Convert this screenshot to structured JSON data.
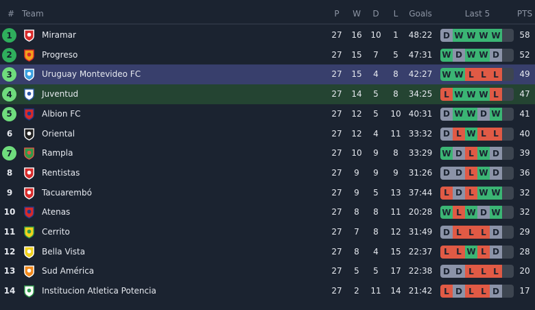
{
  "header": {
    "rank": "#",
    "team": "Team",
    "p": "P",
    "w": "W",
    "d": "D",
    "l": "L",
    "goals": "Goals",
    "last5": "Last 5",
    "pts": "PTS"
  },
  "colors": {
    "W": "#3bb574",
    "D": "#8b93a8",
    "L": "#e05a45",
    "badge_top": "#2fae5c",
    "badge_qual": "#6fdc7d",
    "highlight_selected": "#383f6c",
    "highlight_team": "#244432"
  },
  "rows": [
    {
      "rank": "1",
      "team": "Miramar",
      "p": "27",
      "w": "16",
      "d": "10",
      "l": "1",
      "goals": "48:22",
      "form": [
        "D",
        "W",
        "W",
        "W",
        "W"
      ],
      "pts": "58",
      "badge": "top",
      "crest": [
        "#d82a2a",
        "#fff"
      ]
    },
    {
      "rank": "2",
      "team": "Progreso",
      "p": "27",
      "w": "15",
      "d": "7",
      "l": "5",
      "goals": "47:31",
      "form": [
        "W",
        "D",
        "W",
        "W",
        "D"
      ],
      "pts": "52",
      "badge": "top",
      "crest": [
        "#f2a21c",
        "#d82a2a"
      ]
    },
    {
      "rank": "3",
      "team": "Uruguay Montevideo FC",
      "p": "27",
      "w": "15",
      "d": "4",
      "l": "8",
      "goals": "42:27",
      "form": [
        "W",
        "W",
        "L",
        "L",
        "L"
      ],
      "pts": "49",
      "badge": "qual",
      "crest": [
        "#3aa0e0",
        "#fff"
      ],
      "highlight": "selected"
    },
    {
      "rank": "4",
      "team": "Juventud",
      "p": "27",
      "w": "14",
      "d": "5",
      "l": "8",
      "goals": "34:25",
      "form": [
        "L",
        "W",
        "W",
        "W",
        "L"
      ],
      "pts": "47",
      "badge": "qual",
      "crest": [
        "#fff",
        "#2d5aa8"
      ],
      "highlight": "team"
    },
    {
      "rank": "5",
      "team": "Albion FC",
      "p": "27",
      "w": "12",
      "d": "5",
      "l": "10",
      "goals": "40:31",
      "form": [
        "D",
        "W",
        "W",
        "D",
        "W"
      ],
      "pts": "41",
      "badge": "qual",
      "crest": [
        "#d82a2a",
        "#1e3a8a"
      ]
    },
    {
      "rank": "6",
      "team": "Oriental",
      "p": "27",
      "w": "12",
      "d": "4",
      "l": "11",
      "goals": "33:32",
      "form": [
        "D",
        "L",
        "W",
        "L",
        "L"
      ],
      "pts": "40",
      "badge": "",
      "crest": [
        "#222",
        "#fff"
      ]
    },
    {
      "rank": "7",
      "team": "Rampla",
      "p": "27",
      "w": "10",
      "d": "9",
      "l": "8",
      "goals": "33:29",
      "form": [
        "W",
        "D",
        "L",
        "W",
        "D"
      ],
      "pts": "39",
      "badge": "qual",
      "crest": [
        "#2f9a4a",
        "#e05a45"
      ]
    },
    {
      "rank": "8",
      "team": "Rentistas",
      "p": "27",
      "w": "9",
      "d": "9",
      "l": "9",
      "goals": "31:26",
      "form": [
        "D",
        "D",
        "L",
        "W",
        "D"
      ],
      "pts": "36",
      "badge": "",
      "crest": [
        "#d82a2a",
        "#fff"
      ]
    },
    {
      "rank": "9",
      "team": "Tacuarembó",
      "p": "27",
      "w": "9",
      "d": "5",
      "l": "13",
      "goals": "37:44",
      "form": [
        "L",
        "D",
        "L",
        "W",
        "W"
      ],
      "pts": "32",
      "badge": "",
      "crest": [
        "#d82a2a",
        "#fff"
      ]
    },
    {
      "rank": "10",
      "team": "Atenas",
      "p": "27",
      "w": "8",
      "d": "8",
      "l": "11",
      "goals": "20:28",
      "form": [
        "W",
        "L",
        "W",
        "D",
        "W"
      ],
      "pts": "32",
      "badge": "",
      "crest": [
        "#d82a2a",
        "#1e3a8a"
      ]
    },
    {
      "rank": "11",
      "team": "Cerrito",
      "p": "27",
      "w": "7",
      "d": "8",
      "l": "12",
      "goals": "31:49",
      "form": [
        "D",
        "L",
        "L",
        "L",
        "D"
      ],
      "pts": "29",
      "badge": "",
      "crest": [
        "#f2d21c",
        "#2f9a4a"
      ]
    },
    {
      "rank": "12",
      "team": "Bella Vista",
      "p": "27",
      "w": "8",
      "d": "4",
      "l": "15",
      "goals": "22:37",
      "form": [
        "L",
        "L",
        "W",
        "L",
        "D"
      ],
      "pts": "28",
      "badge": "",
      "crest": [
        "#f2d21c",
        "#fff"
      ]
    },
    {
      "rank": "13",
      "team": "Sud América",
      "p": "27",
      "w": "5",
      "d": "5",
      "l": "17",
      "goals": "22:38",
      "form": [
        "D",
        "D",
        "L",
        "L",
        "L"
      ],
      "pts": "20",
      "badge": "",
      "crest": [
        "#f28a1c",
        "#fff"
      ]
    },
    {
      "rank": "14",
      "team": "Institucion Atletica Potencia",
      "p": "27",
      "w": "2",
      "d": "11",
      "l": "14",
      "goals": "21:42",
      "form": [
        "L",
        "D",
        "L",
        "L",
        "D"
      ],
      "pts": "17",
      "badge": "",
      "crest": [
        "#fff",
        "#2f9a4a"
      ]
    }
  ]
}
